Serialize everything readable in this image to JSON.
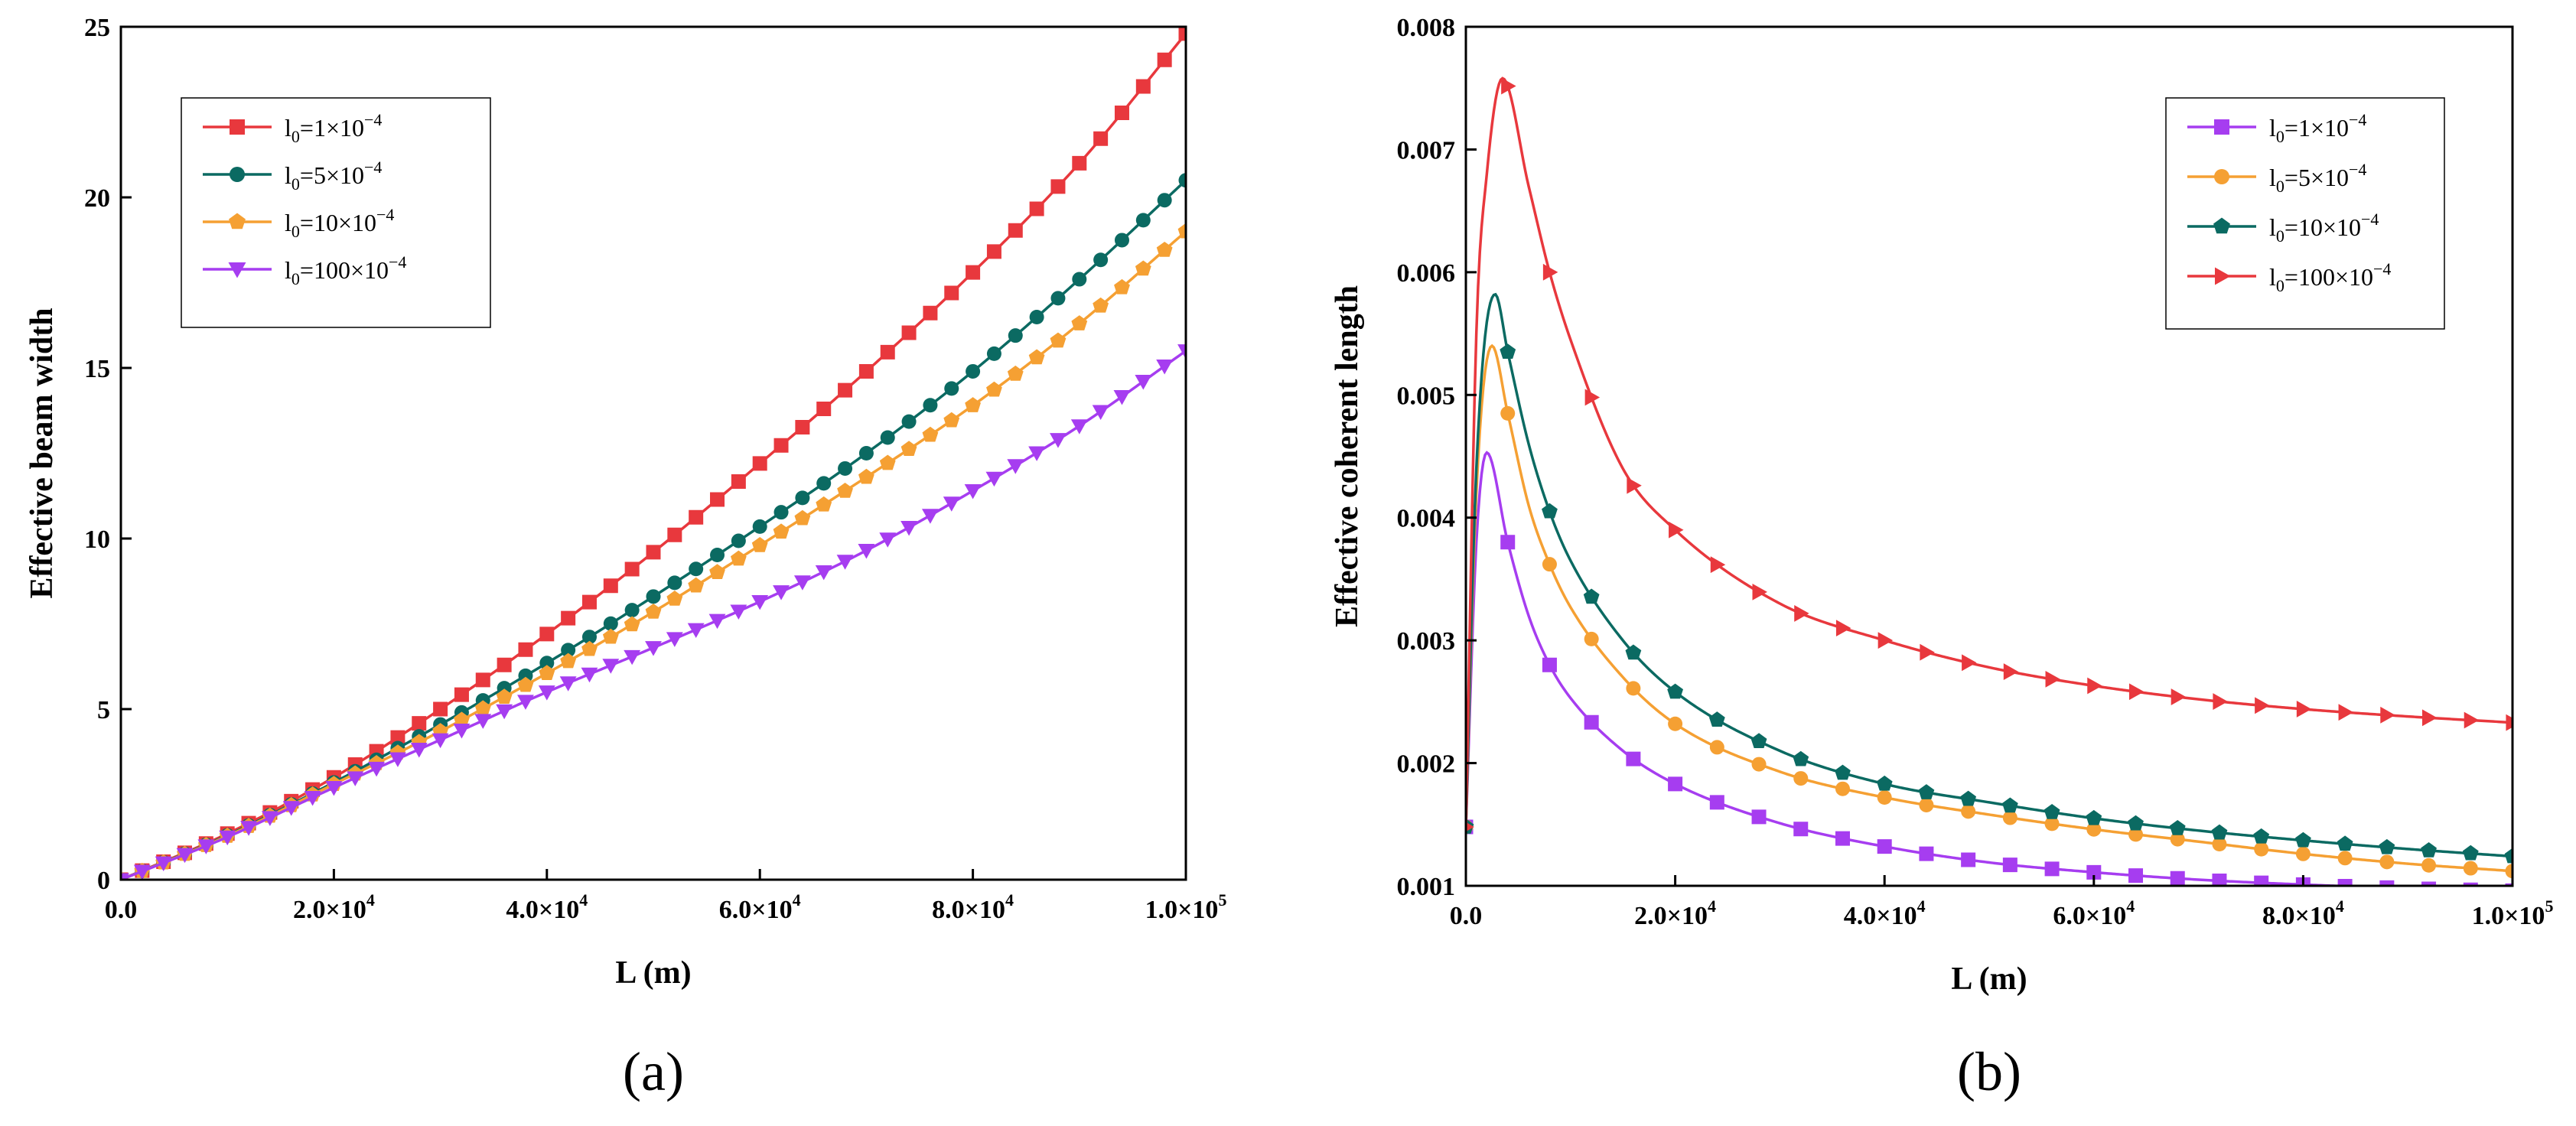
{
  "chart_data": [
    {
      "type": "line",
      "panel_label": "(a)",
      "xlabel": "L (m)",
      "ylabel": "Effective beam width",
      "xlim": [
        0,
        100000
      ],
      "ylim": [
        0,
        25
      ],
      "x_ticks": [
        {
          "value": 0,
          "mant": "0.0",
          "exp": ""
        },
        {
          "value": 20000,
          "mant": "2.0×10",
          "exp": "4"
        },
        {
          "value": 40000,
          "mant": "4.0×10",
          "exp": "4"
        },
        {
          "value": 60000,
          "mant": "6.0×10",
          "exp": "4"
        },
        {
          "value": 80000,
          "mant": "8.0×10",
          "exp": "4"
        },
        {
          "value": 100000,
          "mant": "1.0×10",
          "exp": "5"
        }
      ],
      "y_ticks": [
        {
          "value": 0,
          "label": "0"
        },
        {
          "value": 5,
          "label": "5"
        },
        {
          "value": 10,
          "label": "10"
        },
        {
          "value": 15,
          "label": "15"
        },
        {
          "value": 20,
          "label": "20"
        },
        {
          "value": 25,
          "label": "25"
        }
      ],
      "legend_location": "top-left",
      "series": [
        {
          "name": "l0=1×10−4",
          "legend": {
            "base": "l",
            "sub": "0",
            "mid": "=1×10",
            "sup": "−4"
          },
          "color": "#e8383d",
          "marker": "square",
          "x": [
            0,
            10000,
            20000,
            30000,
            40000,
            50000,
            60000,
            70000,
            80000,
            90000,
            100000
          ],
          "y": [
            0.0,
            1.35,
            3.0,
            5.0,
            7.2,
            9.6,
            12.2,
            14.9,
            17.8,
            21.0,
            24.8
          ]
        },
        {
          "name": "l0=5×10−4",
          "legend": {
            "base": "l",
            "sub": "0",
            "mid": "=5×10",
            "sup": "−4"
          },
          "color": "#0b6a62",
          "marker": "circle",
          "x": [
            0,
            10000,
            20000,
            30000,
            40000,
            50000,
            60000,
            70000,
            80000,
            90000,
            100000
          ],
          "y": [
            0.0,
            1.3,
            2.85,
            4.55,
            6.35,
            8.3,
            10.35,
            12.5,
            14.9,
            17.6,
            20.5
          ]
        },
        {
          "name": "l0=10×10−4",
          "legend": {
            "base": "l",
            "sub": "0",
            "mid": "=10×10",
            "sup": "−4"
          },
          "color": "#f5a033",
          "marker": "pentagon",
          "x": [
            0,
            10000,
            20000,
            30000,
            40000,
            50000,
            60000,
            70000,
            80000,
            90000,
            100000
          ],
          "y": [
            0.0,
            1.28,
            2.8,
            4.35,
            6.05,
            7.85,
            9.8,
            11.8,
            13.9,
            16.3,
            19.0
          ]
        },
        {
          "name": "l0=100×10−4",
          "legend": {
            "base": "l",
            "sub": "0",
            "mid": "=100×10",
            "sup": "−4"
          },
          "color": "#a63df0",
          "marker": "triangle-down",
          "x": [
            0,
            10000,
            20000,
            30000,
            40000,
            50000,
            60000,
            70000,
            80000,
            90000,
            100000
          ],
          "y": [
            0.0,
            1.25,
            2.7,
            4.1,
            5.5,
            6.8,
            8.15,
            9.65,
            11.4,
            13.3,
            15.5
          ]
        }
      ]
    },
    {
      "type": "line",
      "panel_label": "(b)",
      "xlabel": "L (m)",
      "ylabel": "Effective coherent length",
      "xlim": [
        0,
        100000
      ],
      "ylim": [
        0.001,
        0.008
      ],
      "x_ticks": [
        {
          "value": 0,
          "mant": "0.0",
          "exp": ""
        },
        {
          "value": 20000,
          "mant": "2.0×10",
          "exp": "4"
        },
        {
          "value": 40000,
          "mant": "4.0×10",
          "exp": "4"
        },
        {
          "value": 60000,
          "mant": "6.0×10",
          "exp": "4"
        },
        {
          "value": 80000,
          "mant": "8.0×10",
          "exp": "4"
        },
        {
          "value": 100000,
          "mant": "1.0×10",
          "exp": "5"
        }
      ],
      "y_ticks": [
        {
          "value": 0.001,
          "label": "0.001"
        },
        {
          "value": 0.002,
          "label": "0.002"
        },
        {
          "value": 0.003,
          "label": "0.003"
        },
        {
          "value": 0.004,
          "label": "0.004"
        },
        {
          "value": 0.005,
          "label": "0.005"
        },
        {
          "value": 0.006,
          "label": "0.006"
        },
        {
          "value": 0.007,
          "label": "0.007"
        },
        {
          "value": 0.008,
          "label": "0.008"
        }
      ],
      "legend_location": "top-right",
      "series": [
        {
          "name": "l0=1×10−4",
          "legend": {
            "base": "l",
            "sub": "0",
            "mid": "=1×10",
            "sup": "−4"
          },
          "color": "#a63df0",
          "marker": "square",
          "x": [
            0,
            1000,
            2000,
            4000,
            6000,
            8000,
            10000,
            15000,
            20000,
            30000,
            40000,
            50000,
            60000,
            70000,
            80000,
            90000,
            100000
          ],
          "y": [
            0.00148,
            0.0038,
            0.00453,
            0.0038,
            0.0032,
            0.0028,
            0.00253,
            0.0021,
            0.00183,
            0.00151,
            0.00132,
            0.00119,
            0.00111,
            0.00105,
            0.00101,
            0.00098,
            0.00096
          ]
        },
        {
          "name": "l0=5×10−4",
          "legend": {
            "base": "l",
            "sub": "0",
            "mid": "=5×10",
            "sup": "−4"
          },
          "color": "#f5a033",
          "marker": "circle",
          "x": [
            0,
            1000,
            2500,
            4000,
            6000,
            8000,
            10000,
            15000,
            20000,
            30000,
            40000,
            50000,
            60000,
            70000,
            80000,
            90000,
            100000
          ],
          "y": [
            0.00148,
            0.0042,
            0.0054,
            0.00485,
            0.0041,
            0.00362,
            0.00327,
            0.0027,
            0.00232,
            0.00193,
            0.00172,
            0.00158,
            0.00146,
            0.00136,
            0.00126,
            0.00118,
            0.00112
          ]
        },
        {
          "name": "l0=10×10−4",
          "legend": {
            "base": "l",
            "sub": "0",
            "mid": "=10×10",
            "sup": "−4"
          },
          "color": "#0b6a62",
          "marker": "pentagon",
          "x": [
            0,
            1000,
            2800,
            4000,
            6000,
            8000,
            10000,
            15000,
            20000,
            30000,
            40000,
            50000,
            60000,
            70000,
            80000,
            90000,
            100000
          ],
          "y": [
            0.00148,
            0.0044,
            0.00582,
            0.00535,
            0.0046,
            0.00405,
            0.00365,
            0.003,
            0.00258,
            0.0021,
            0.00183,
            0.00168,
            0.00155,
            0.00145,
            0.00137,
            0.0013,
            0.00124
          ]
        },
        {
          "name": "l0=100×10−4",
          "legend": {
            "base": "l",
            "sub": "0",
            "mid": "=100×10",
            "sup": "−4"
          },
          "color": "#e8383d",
          "marker": "triangle-right",
          "x": [
            0,
            1000,
            2000,
            3500,
            6000,
            8000,
            10000,
            15000,
            20000,
            30000,
            40000,
            50000,
            60000,
            70000,
            80000,
            90000,
            100000
          ],
          "y": [
            0.00148,
            0.0055,
            0.0068,
            0.00758,
            0.0067,
            0.006,
            0.00545,
            0.0044,
            0.0039,
            0.0033,
            0.003,
            0.00278,
            0.00263,
            0.00252,
            0.00244,
            0.00238,
            0.00233
          ]
        }
      ]
    }
  ]
}
